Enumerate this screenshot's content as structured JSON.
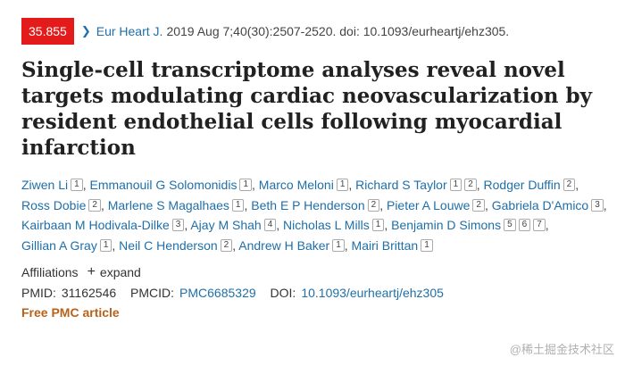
{
  "citation": {
    "impact_factor": "35.855",
    "journal": "Eur Heart J.",
    "details": "2019 Aug 7;40(30):2507-2520. doi: 10.1093/eurheartj/ehz305."
  },
  "title": "Single-cell transcriptome analyses reveal novel targets modulating cardiac neovascularization by resident endothelial cells following myocardial infarction",
  "authors": [
    {
      "name": "Ziwen Li",
      "refs": [
        "1"
      ]
    },
    {
      "name": "Emmanouil G Solomonidis",
      "refs": [
        "1"
      ]
    },
    {
      "name": "Marco Meloni",
      "refs": [
        "1"
      ]
    },
    {
      "name": "Richard S Taylor",
      "refs": [
        "1",
        "2"
      ]
    },
    {
      "name": "Rodger Duffin",
      "refs": [
        "2"
      ]
    },
    {
      "name": "Ross Dobie",
      "refs": [
        "2"
      ]
    },
    {
      "name": "Marlene S Magalhaes",
      "refs": [
        "1"
      ]
    },
    {
      "name": "Beth E P Henderson",
      "refs": [
        "2"
      ]
    },
    {
      "name": "Pieter A Louwe",
      "refs": [
        "2"
      ]
    },
    {
      "name": "Gabriela D'Amico",
      "refs": [
        "3"
      ]
    },
    {
      "name": "Kairbaan M Hodivala-Dilke",
      "refs": [
        "3"
      ]
    },
    {
      "name": "Ajay M Shah",
      "refs": [
        "4"
      ]
    },
    {
      "name": "Nicholas L Mills",
      "refs": [
        "1"
      ]
    },
    {
      "name": "Benjamin D Simons",
      "refs": [
        "5",
        "6",
        "7"
      ]
    },
    {
      "name": "Gillian A Gray",
      "refs": [
        "1"
      ]
    },
    {
      "name": "Neil C Henderson",
      "refs": [
        "2"
      ]
    },
    {
      "name": "Andrew H Baker",
      "refs": [
        "1"
      ]
    },
    {
      "name": "Mairi Brittan",
      "refs": [
        "1"
      ]
    }
  ],
  "affiliations": {
    "label": "Affiliations",
    "expand_label": "expand"
  },
  "ids": {
    "pmid_label": "PMID:",
    "pmid": "31162546",
    "pmcid_label": "PMCID:",
    "pmcid": "PMC6685329",
    "doi_label": "DOI:",
    "doi": "10.1093/eurheartj/ehz305"
  },
  "free_label": "Free PMC article",
  "watermark": "@稀土掘金技术社区",
  "colors": {
    "badge": "#e31b1b",
    "link": "#1f6fa8",
    "free": "#b8611a"
  }
}
